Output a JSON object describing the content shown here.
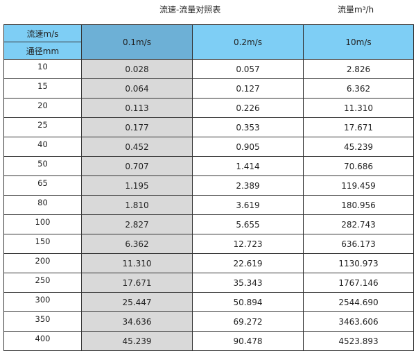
{
  "title": "流速-流量对照表",
  "unit_label": "流量m³/h",
  "header": {
    "velocity_label": "流速m/s",
    "diameter_label": "通径mm",
    "columns": [
      "0.1m/s",
      "0.2m/s",
      "10m/s"
    ]
  },
  "colors": {
    "header": "#7ecef5",
    "header_selected": "#6db0d6",
    "first_column": "#d9d9d9"
  },
  "rows": [
    {
      "d": "10",
      "v": [
        "0.028",
        "0.057",
        "2.826"
      ]
    },
    {
      "d": "15",
      "v": [
        "0.064",
        "0.127",
        "6.362"
      ]
    },
    {
      "d": "20",
      "v": [
        "0.113",
        "0.226",
        "11.310"
      ]
    },
    {
      "d": "25",
      "v": [
        "0.177",
        "0.353",
        "17.671"
      ]
    },
    {
      "d": "40",
      "v": [
        "0.452",
        "0.905",
        "45.239"
      ]
    },
    {
      "d": "50",
      "v": [
        "0.707",
        "1.414",
        "70.686"
      ]
    },
    {
      "d": "65",
      "v": [
        "1.195",
        "2.389",
        "119.459"
      ]
    },
    {
      "d": "80",
      "v": [
        "1.810",
        "3.619",
        "180.956"
      ]
    },
    {
      "d": "100",
      "v": [
        "2.827",
        "5.655",
        "282.743"
      ]
    },
    {
      "d": "150",
      "v": [
        "6.362",
        "12.723",
        "636.173"
      ]
    },
    {
      "d": "200",
      "v": [
        "11.310",
        "22.619",
        "1130.973"
      ]
    },
    {
      "d": "250",
      "v": [
        "17.671",
        "35.343",
        "1767.146"
      ]
    },
    {
      "d": "300",
      "v": [
        "25.447",
        "50.894",
        "2544.690"
      ]
    },
    {
      "d": "350",
      "v": [
        "34.636",
        "69.272",
        "3463.606"
      ]
    },
    {
      "d": "400",
      "v": [
        "45.239",
        "90.478",
        "4523.893"
      ]
    }
  ]
}
